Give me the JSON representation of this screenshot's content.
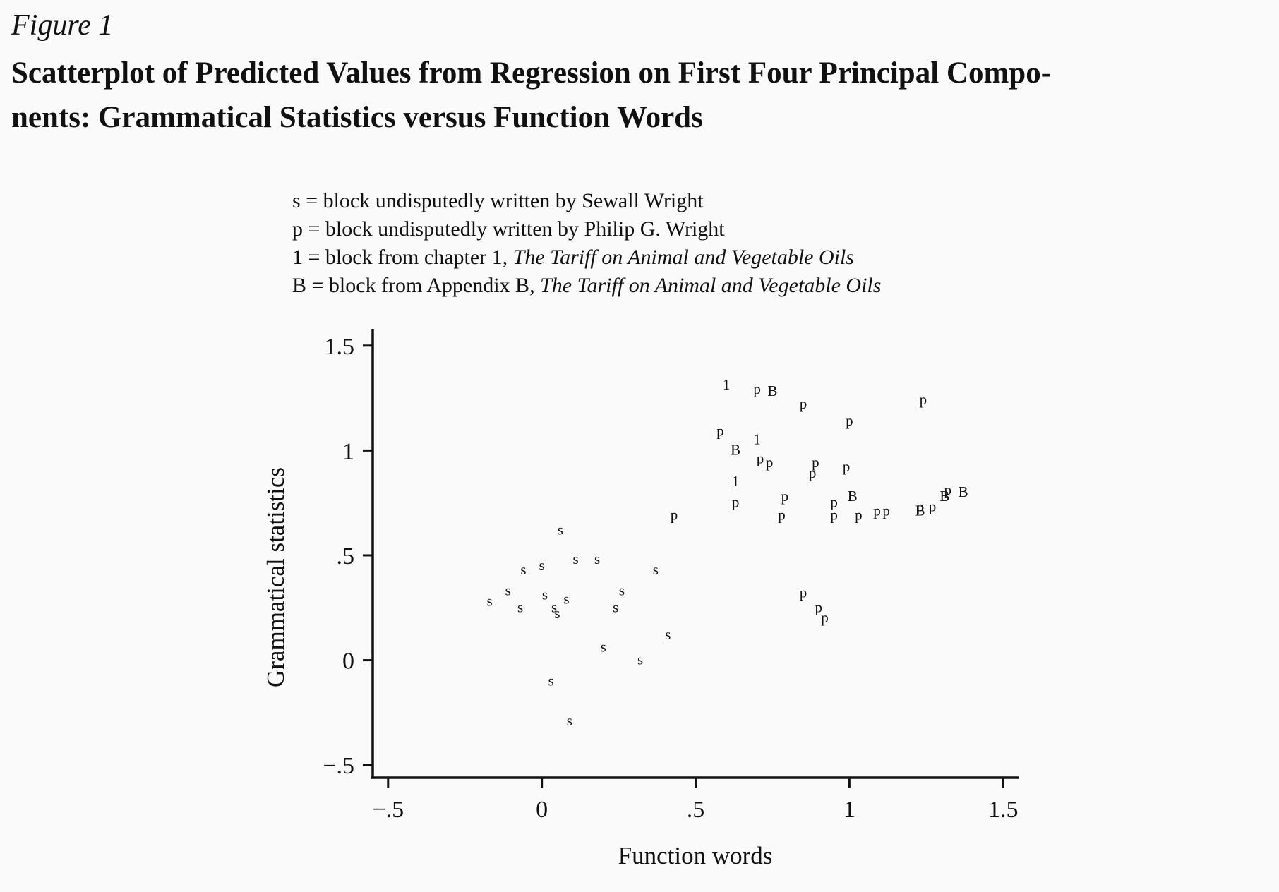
{
  "figure": {
    "label": "Figure 1",
    "title_line1": "Scatterplot of Predicted Values from Regression on First Four Principal Compo-",
    "title_line2": "nents: Grammatical Statistics versus Function Words"
  },
  "legend": [
    {
      "prefix": "s = block undisputedly written by Sewall Wright",
      "italic": ""
    },
    {
      "prefix": "p = block undisputedly written by Philip G. Wright",
      "italic": ""
    },
    {
      "prefix": "1 = block from chapter 1, ",
      "italic": "The Tariff on Animal and Vegetable Oils"
    },
    {
      "prefix": "B = block from Appendix B, ",
      "italic": "The Tariff on Animal and Vegetable Oils"
    }
  ],
  "chart_data": {
    "type": "scatter",
    "xlabel": "Function words",
    "ylabel": "Grammatical statistics",
    "xlim": [
      -0.55,
      1.55
    ],
    "ylim": [
      -0.56,
      1.58
    ],
    "x_ticks": [
      {
        "value": -0.5,
        "label": "−.5"
      },
      {
        "value": 0,
        "label": "0"
      },
      {
        "value": 0.5,
        "label": ".5"
      },
      {
        "value": 1,
        "label": "1"
      },
      {
        "value": 1.5,
        "label": "1.5"
      }
    ],
    "y_ticks": [
      {
        "value": -0.5,
        "label": "−.5"
      },
      {
        "value": 0,
        "label": "0"
      },
      {
        "value": 0.5,
        "label": ".5"
      },
      {
        "value": 1,
        "label": "1"
      },
      {
        "value": 1.5,
        "label": "1.5"
      }
    ],
    "grid": false,
    "series": [
      {
        "name": "s",
        "marker": "s",
        "points": [
          [
            -0.17,
            0.28
          ],
          [
            -0.11,
            0.33
          ],
          [
            -0.07,
            0.25
          ],
          [
            -0.06,
            0.43
          ],
          [
            0.0,
            0.45
          ],
          [
            0.01,
            0.31
          ],
          [
            0.04,
            0.25
          ],
          [
            0.05,
            0.22
          ],
          [
            0.08,
            0.29
          ],
          [
            0.06,
            0.62
          ],
          [
            0.11,
            0.48
          ],
          [
            0.18,
            0.48
          ],
          [
            0.24,
            0.25
          ],
          [
            0.26,
            0.33
          ],
          [
            0.37,
            0.43
          ],
          [
            0.2,
            0.06
          ],
          [
            0.32,
            0.0
          ],
          [
            0.41,
            0.12
          ],
          [
            0.03,
            -0.1
          ],
          [
            0.09,
            -0.29
          ]
        ]
      },
      {
        "name": "p",
        "marker": "p",
        "points": [
          [
            0.43,
            0.69
          ],
          [
            0.58,
            1.09
          ],
          [
            0.63,
            0.75
          ],
          [
            0.7,
            1.29
          ],
          [
            0.71,
            0.96
          ],
          [
            0.74,
            0.94
          ],
          [
            0.78,
            0.69
          ],
          [
            0.79,
            0.78
          ],
          [
            0.85,
            1.22
          ],
          [
            0.85,
            0.32
          ],
          [
            0.88,
            0.89
          ],
          [
            0.89,
            0.94
          ],
          [
            0.9,
            0.25
          ],
          [
            0.92,
            0.2
          ],
          [
            0.95,
            0.69
          ],
          [
            0.95,
            0.75
          ],
          [
            0.99,
            0.92
          ],
          [
            1.0,
            1.14
          ],
          [
            1.03,
            0.69
          ],
          [
            1.09,
            0.71
          ],
          [
            1.12,
            0.71
          ],
          [
            1.23,
            0.73
          ],
          [
            1.24,
            1.24
          ],
          [
            1.27,
            0.73
          ],
          [
            1.32,
            0.81
          ]
        ]
      },
      {
        "name": "1",
        "marker": "1",
        "points": [
          [
            0.6,
            1.31
          ],
          [
            0.7,
            1.05
          ],
          [
            0.63,
            0.85
          ]
        ]
      },
      {
        "name": "B",
        "marker": "B",
        "points": [
          [
            0.75,
            1.28
          ],
          [
            0.63,
            1.0
          ],
          [
            1.01,
            0.78
          ],
          [
            1.23,
            0.71
          ],
          [
            1.31,
            0.78
          ],
          [
            1.37,
            0.8
          ]
        ]
      }
    ]
  }
}
